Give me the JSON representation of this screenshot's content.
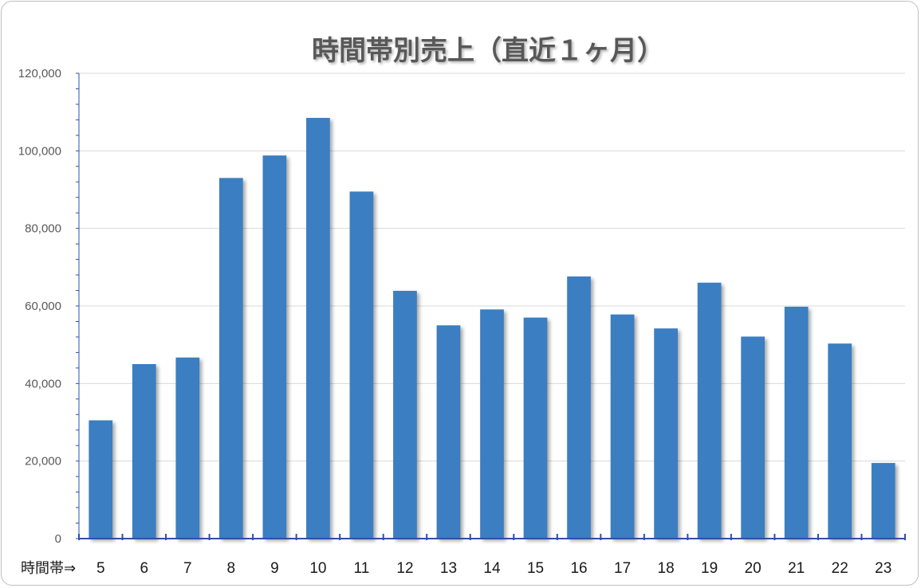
{
  "chart_data": {
    "type": "bar",
    "title": "時間帯別売上（直近１ヶ月）",
    "xlabel": "時間帯⇒",
    "ylabel": "",
    "categories": [
      "5",
      "6",
      "7",
      "8",
      "9",
      "10",
      "11",
      "12",
      "13",
      "14",
      "15",
      "16",
      "17",
      "18",
      "19",
      "20",
      "21",
      "22",
      "23"
    ],
    "values": [
      30500,
      45000,
      46700,
      93000,
      98800,
      108500,
      89500,
      63900,
      55000,
      59100,
      57000,
      67600,
      57800,
      54200,
      66000,
      52100,
      59800,
      50300,
      19500
    ],
    "ylim": [
      0,
      120000
    ],
    "yticks": [
      0,
      20000,
      40000,
      60000,
      80000,
      100000,
      120000
    ],
    "ytick_labels": [
      "0",
      "20,000",
      "40,000",
      "60,000",
      "80,000",
      "100,000",
      "120,000"
    ],
    "grid": true,
    "bar_color": "#3A7EC1",
    "axis_color": "#2F4FA8"
  }
}
